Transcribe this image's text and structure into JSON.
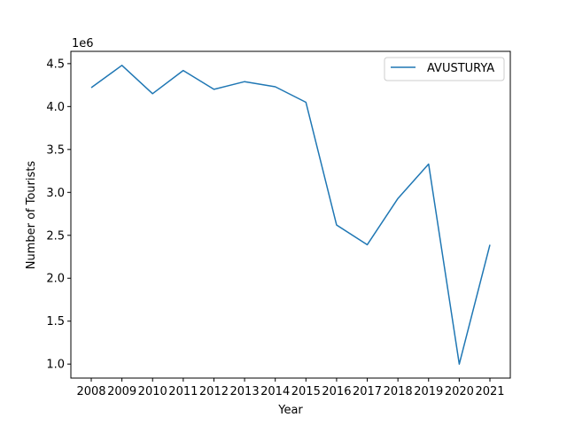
{
  "chart_data": {
    "type": "line",
    "x": [
      "2008",
      "2009",
      "2010",
      "2011",
      "2012",
      "2013",
      "2014",
      "2015",
      "2016",
      "2017",
      "2018",
      "2019",
      "2020",
      "2021"
    ],
    "series": [
      {
        "name": "AVUSTURYA",
        "values": [
          4220000,
          4480000,
          4150000,
          4420000,
          4200000,
          4290000,
          4230000,
          4050000,
          2620000,
          2390000,
          2930000,
          3330000,
          1000000,
          2390000
        ],
        "color": "#1f77b4"
      }
    ],
    "xlabel": "Year",
    "ylabel": "Number of Tourists",
    "y_offset_label": "1e6",
    "y_ticks": [
      1.0,
      1.5,
      2.0,
      2.5,
      3.0,
      3.5,
      4.0,
      4.5
    ],
    "y_tick_labels": [
      "1.0",
      "1.5",
      "2.0",
      "2.5",
      "3.0",
      "3.5",
      "4.0",
      "4.5"
    ],
    "y_scale": 1000000,
    "ylim": [
      837000,
      4643000
    ],
    "grid": false,
    "legend_position": "top-right"
  }
}
